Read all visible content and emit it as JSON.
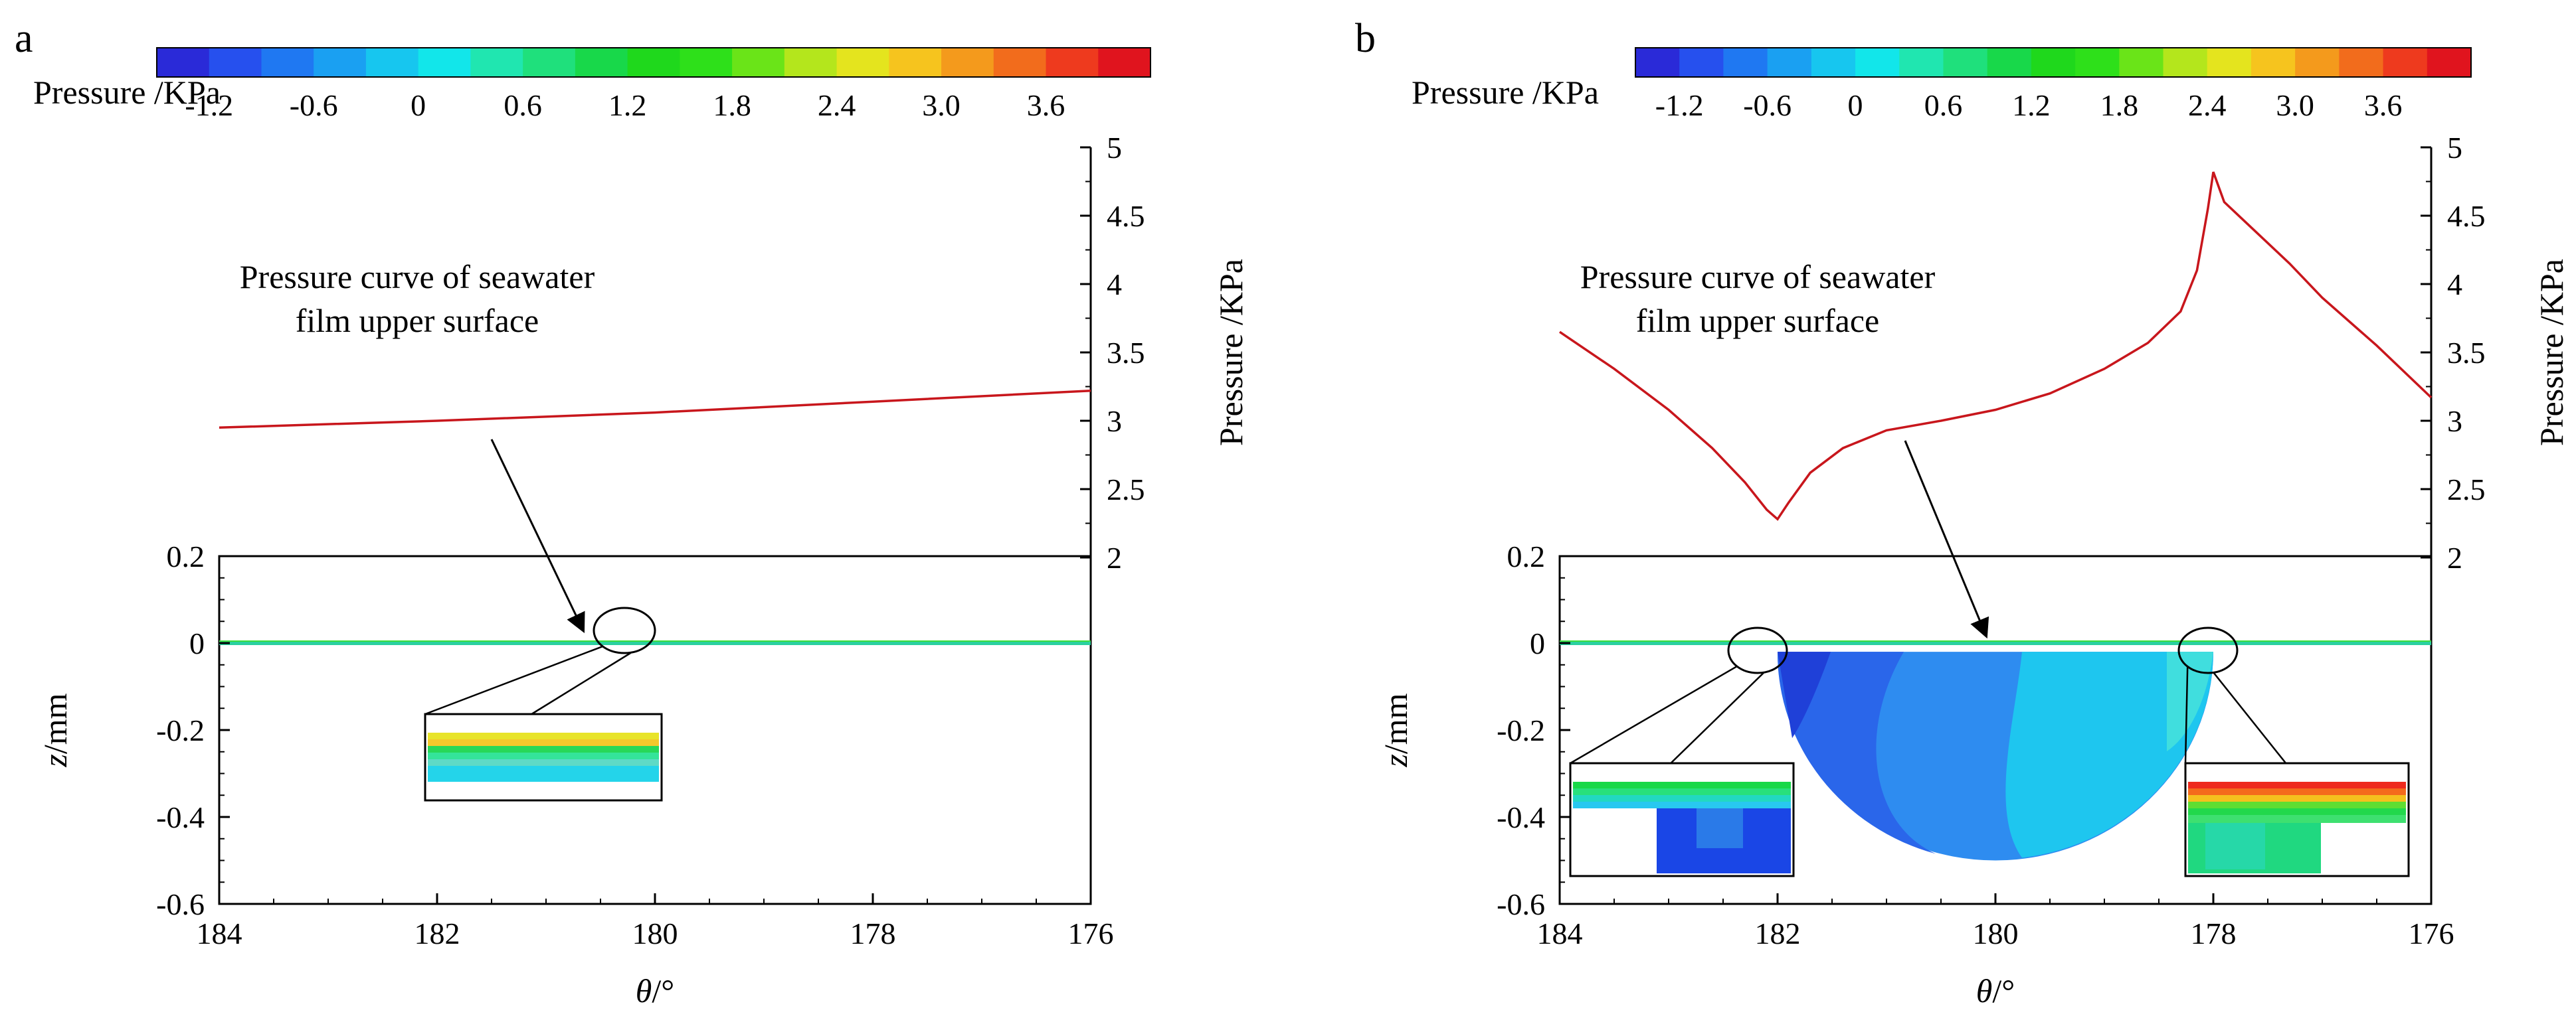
{
  "colormap": [
    "#2a2ad8",
    "#2650ee",
    "#1f78f2",
    "#1aa0f2",
    "#17c6ef",
    "#12e6ea",
    "#20e6b0",
    "#1fe07c",
    "#18d84a",
    "#1fd81c",
    "#2ee01a",
    "#6ae418",
    "#b4e61c",
    "#e4e41e",
    "#f6c41e",
    "#f49a1c",
    "#f26c1c",
    "#ee3a1e",
    "#e0141e"
  ],
  "chart_data": [
    {
      "panel_label": "a",
      "type": "line",
      "legend": {
        "title": "Pressure /KPa",
        "ticks": [
          "-1.2",
          "-0.6",
          "0",
          "0.6",
          "1.2",
          "1.8",
          "2.4",
          "3.0",
          "3.6"
        ],
        "range": [
          -1.5,
          4.2
        ]
      },
      "annotation": {
        "line1": "Pressure curve of seawater",
        "line2": "film upper surface"
      },
      "pressure_axis": {
        "label": "Pressure /KPa",
        "ticks": [
          "2",
          "2.5",
          "3",
          "3.5",
          "4",
          "4.5",
          "5"
        ],
        "range": [
          2,
          5
        ]
      },
      "z_axis": {
        "label_var": "z",
        "label_unit": "/mm",
        "ticks": [
          "0.2",
          "0",
          "-0.2",
          "-0.4",
          "-0.6"
        ],
        "range": [
          -0.6,
          0.2
        ]
      },
      "theta_axis": {
        "label_var": "θ",
        "label_unit": "/°",
        "ticks": [
          "184",
          "182",
          "180",
          "178",
          "176"
        ],
        "range": [
          184,
          176
        ]
      },
      "pressure_curve": {
        "x": [
          184,
          182,
          180,
          178,
          176
        ],
        "y": [
          2.95,
          3.0,
          3.06,
          3.14,
          3.22
        ]
      },
      "dimple": false,
      "zooms": [
        {
          "theta": 180.3,
          "z": 0.0,
          "stripes": [
            "#e8e42a",
            "#f4c82c",
            "#28d858",
            "#34e49a",
            "#5edac6",
            "#24d4ea"
          ],
          "fill": "#24d4ea",
          "block": null
        }
      ]
    },
    {
      "panel_label": "b",
      "type": "line",
      "legend": {
        "title": "Pressure /KPa",
        "ticks": [
          "-1.2",
          "-0.6",
          "0",
          "0.6",
          "1.2",
          "1.8",
          "2.4",
          "3.0",
          "3.6"
        ],
        "range": [
          -1.5,
          4.2
        ]
      },
      "annotation": {
        "line1": "Pressure curve of seawater",
        "line2": "film upper surface"
      },
      "pressure_axis": {
        "label": "Pressure /KPa",
        "ticks": [
          "2",
          "2.5",
          "3",
          "3.5",
          "4",
          "4.5",
          "5"
        ],
        "range": [
          2,
          5
        ]
      },
      "z_axis": {
        "label_var": "z",
        "label_unit": "/mm",
        "ticks": [
          "0.2",
          "0",
          "-0.2",
          "-0.4",
          "-0.6"
        ],
        "range": [
          -0.6,
          0.2
        ]
      },
      "theta_axis": {
        "label_var": "θ",
        "label_unit": "/°",
        "ticks": [
          "184",
          "182",
          "180",
          "178",
          "176"
        ],
        "range": [
          184,
          176
        ]
      },
      "pressure_curve": {
        "x": [
          184,
          183.5,
          183,
          182.6,
          182.3,
          182.1,
          182.0,
          181.9,
          181.7,
          181.4,
          181,
          180.5,
          180,
          179.5,
          179,
          178.6,
          178.3,
          178.15,
          178.05,
          178.0,
          177.9,
          177.7,
          177.3,
          177,
          176.5,
          176
        ],
        "y": [
          3.65,
          3.38,
          3.08,
          2.8,
          2.55,
          2.35,
          2.28,
          2.4,
          2.62,
          2.8,
          2.93,
          3.0,
          3.08,
          3.2,
          3.38,
          3.57,
          3.8,
          4.1,
          4.55,
          4.82,
          4.6,
          4.45,
          4.15,
          3.9,
          3.55,
          3.17
        ]
      },
      "dimple": true,
      "dimple_span": [
        182,
        178
      ],
      "dimple_depth": -0.5,
      "zooms": [
        {
          "theta": 182.0,
          "z": -0.02,
          "stripes": [
            "#18d848",
            "#28e07c",
            "#22d8c2"
          ],
          "fill": "#24a0f0",
          "block": "#1a46e6"
        },
        {
          "theta": 178.0,
          "z": -0.02,
          "stripes": [
            "#ee2a1e",
            "#f46a1c",
            "#f4c01e",
            "#5ede32",
            "#22d84c"
          ],
          "fill": "#20d880",
          "block": "#ffffff"
        }
      ]
    }
  ]
}
